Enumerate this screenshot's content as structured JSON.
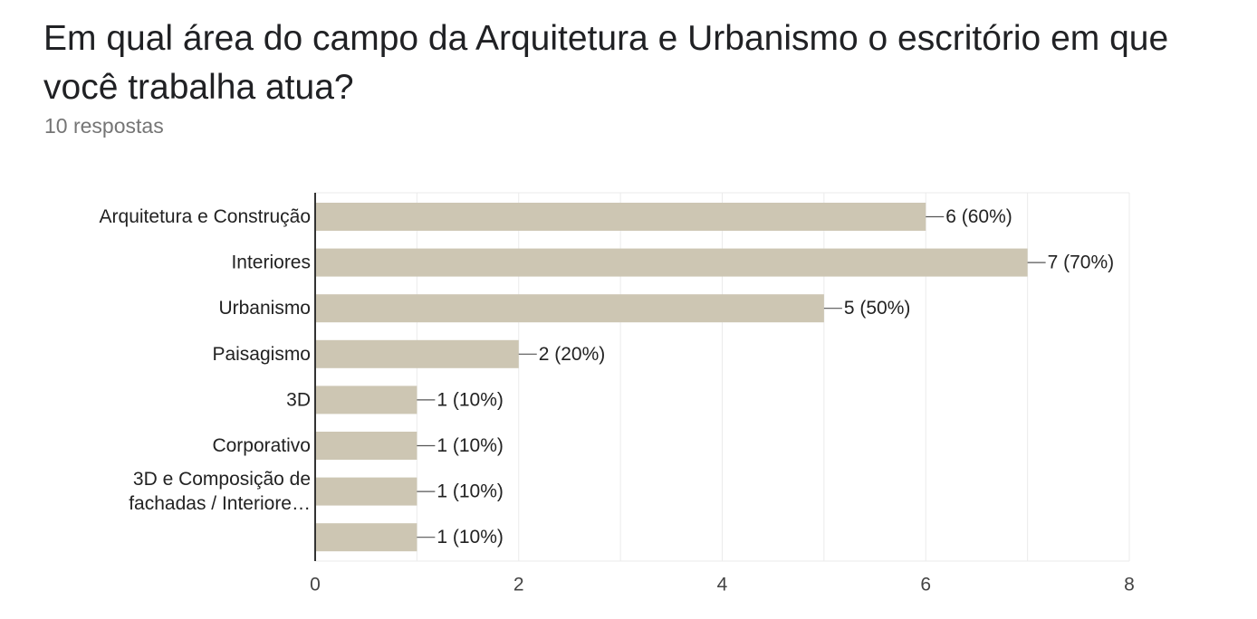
{
  "header": {
    "title": "Em qual área do campo da Arquitetura e Urbanismo o escritório em que você trabalha atua?",
    "responses": "10 respostas"
  },
  "chart_data": {
    "type": "bar",
    "orientation": "horizontal",
    "categories": [
      [
        "Arquitetura e Construção"
      ],
      [
        "Interiores"
      ],
      [
        "Urbanismo"
      ],
      [
        "Paisagismo"
      ],
      [
        "3D"
      ],
      [
        "Corporativo"
      ],
      [
        "3D e Composição de",
        "fachadas / Interiore…"
      ],
      [
        ""
      ]
    ],
    "values": [
      6,
      7,
      5,
      2,
      1,
      1,
      1,
      1
    ],
    "value_labels": [
      "6 (60%)",
      "7 (70%)",
      "5 (50%)",
      "2 (20%)",
      "1 (10%)",
      "1 (10%)",
      "1 (10%)",
      "1 (10%)"
    ],
    "xlim": [
      0,
      8
    ],
    "xticks": [
      0,
      2,
      4,
      6,
      8
    ],
    "grid": true,
    "colors": {
      "bar": "#cdc6b3",
      "grid": "#ebebeb",
      "axis": "#333333",
      "leader": "#555555"
    }
  }
}
